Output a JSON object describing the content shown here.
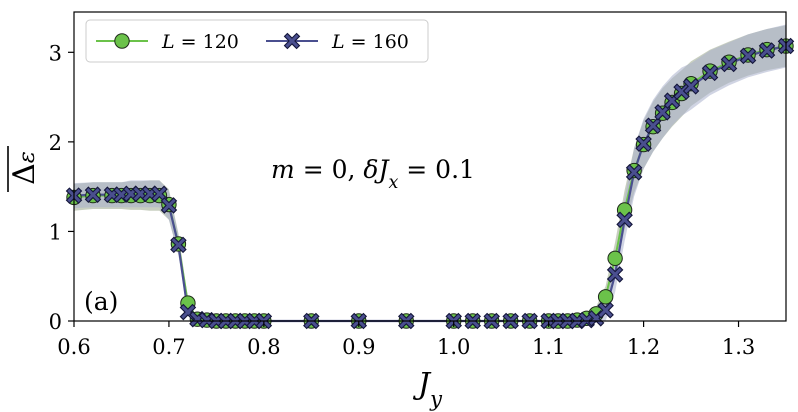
{
  "chart_data": {
    "type": "line",
    "title": "",
    "xlabel": "J_y",
    "ylabel": "Δε (overlined)",
    "xlim": [
      0.6,
      1.35
    ],
    "ylim": [
      0,
      3.45
    ],
    "xticks": [
      "0.6",
      "0.7",
      "0.8",
      "0.9",
      "1.0",
      "1.1",
      "1.2",
      "1.3"
    ],
    "yticks": [
      "0",
      "1",
      "2",
      "3"
    ],
    "grid": false,
    "legend_position": "top-left",
    "panel_label": "(a)",
    "annotation": {
      "parts": [
        {
          "t": "m",
          "style": "italic"
        },
        {
          "t": " = 0, ",
          "style": "normal"
        },
        {
          "t": "δJ",
          "style": "italic"
        },
        {
          "t": "x",
          "style": "italic-sub"
        },
        {
          "t": " = 0.1",
          "style": "normal"
        }
      ]
    },
    "series": [
      {
        "name": "L = 120",
        "legend_parts": [
          {
            "t": "L",
            "style": "italic"
          },
          {
            "t": " = 120",
            "style": "normal"
          }
        ],
        "marker": "circle",
        "color": "#6bc24a",
        "band_color": "#9aa88d",
        "x": [
          0.6,
          0.62,
          0.64,
          0.65,
          0.66,
          0.67,
          0.68,
          0.69,
          0.7,
          0.71,
          0.72,
          0.73,
          0.74,
          0.75,
          0.76,
          0.77,
          0.78,
          0.79,
          0.8,
          0.85,
          0.9,
          0.95,
          1.0,
          1.02,
          1.04,
          1.06,
          1.08,
          1.1,
          1.11,
          1.12,
          1.13,
          1.14,
          1.15,
          1.16,
          1.17,
          1.18,
          1.19,
          1.2,
          1.21,
          1.22,
          1.23,
          1.24,
          1.25,
          1.27,
          1.29,
          1.31,
          1.33,
          1.35
        ],
        "y": [
          1.38,
          1.4,
          1.4,
          1.4,
          1.4,
          1.4,
          1.4,
          1.4,
          1.3,
          0.86,
          0.2,
          0.02,
          0.01,
          0.0,
          0.0,
          0.0,
          0.0,
          0.0,
          0.0,
          0.0,
          0.0,
          0.0,
          0.0,
          0.0,
          0.0,
          0.0,
          0.0,
          0.0,
          0.0,
          0.0,
          0.01,
          0.03,
          0.08,
          0.27,
          0.7,
          1.24,
          1.68,
          1.97,
          2.17,
          2.32,
          2.44,
          2.54,
          2.65,
          2.79,
          2.89,
          2.97,
          3.03,
          3.07
        ],
        "err": [
          0.15,
          0.15,
          0.15,
          0.15,
          0.16,
          0.16,
          0.17,
          0.17,
          0.17,
          0.12,
          0.05,
          0.0,
          0.0,
          0.0,
          0.0,
          0.0,
          0.0,
          0.0,
          0.0,
          0.0,
          0.0,
          0.0,
          0.0,
          0.0,
          0.0,
          0.0,
          0.0,
          0.0,
          0.0,
          0.01,
          0.02,
          0.04,
          0.08,
          0.12,
          0.18,
          0.22,
          0.25,
          0.27,
          0.28,
          0.28,
          0.27,
          0.26,
          0.25,
          0.24,
          0.23,
          0.23,
          0.23,
          0.23
        ]
      },
      {
        "name": "L = 160",
        "legend_parts": [
          {
            "t": "L",
            "style": "italic"
          },
          {
            "t": " = 160",
            "style": "normal"
          }
        ],
        "marker": "x",
        "color": "#4a4f8f",
        "band_color": "#aab0cc",
        "x": [
          0.6,
          0.62,
          0.64,
          0.65,
          0.66,
          0.67,
          0.68,
          0.69,
          0.7,
          0.71,
          0.72,
          0.73,
          0.74,
          0.75,
          0.76,
          0.77,
          0.78,
          0.79,
          0.8,
          0.85,
          0.9,
          0.95,
          1.0,
          1.02,
          1.04,
          1.06,
          1.08,
          1.1,
          1.11,
          1.12,
          1.13,
          1.14,
          1.15,
          1.16,
          1.17,
          1.18,
          1.19,
          1.2,
          1.21,
          1.22,
          1.23,
          1.24,
          1.25,
          1.27,
          1.29,
          1.31,
          1.33,
          1.35
        ],
        "y": [
          1.4,
          1.41,
          1.41,
          1.41,
          1.42,
          1.42,
          1.42,
          1.42,
          1.29,
          0.85,
          0.1,
          0.02,
          0.01,
          0.0,
          0.0,
          0.0,
          0.0,
          0.0,
          0.0,
          0.0,
          0.0,
          0.0,
          0.0,
          0.0,
          0.0,
          0.0,
          0.0,
          0.0,
          0.0,
          0.0,
          0.0,
          0.01,
          0.03,
          0.12,
          0.52,
          1.13,
          1.66,
          1.98,
          2.18,
          2.33,
          2.46,
          2.56,
          2.62,
          2.77,
          2.87,
          2.96,
          3.02,
          3.07
        ],
        "err": [
          0.14,
          0.14,
          0.14,
          0.14,
          0.15,
          0.15,
          0.15,
          0.15,
          0.16,
          0.11,
          0.04,
          0.0,
          0.0,
          0.0,
          0.0,
          0.0,
          0.0,
          0.0,
          0.0,
          0.0,
          0.0,
          0.0,
          0.0,
          0.0,
          0.0,
          0.0,
          0.0,
          0.0,
          0.0,
          0.01,
          0.02,
          0.04,
          0.09,
          0.14,
          0.2,
          0.24,
          0.27,
          0.28,
          0.29,
          0.29,
          0.28,
          0.27,
          0.26,
          0.25,
          0.24,
          0.24,
          0.24,
          0.24
        ]
      }
    ]
  }
}
